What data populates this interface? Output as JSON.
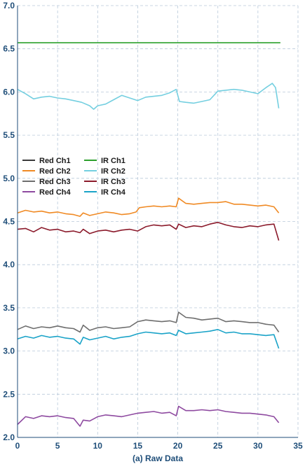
{
  "chart_data": {
    "type": "line",
    "caption": "(a) Raw Data",
    "xlim": [
      0,
      35
    ],
    "ylim": [
      2.0,
      7.0
    ],
    "x_ticks": [
      0,
      5,
      10,
      15,
      20,
      25,
      30,
      35
    ],
    "y_ticks": [
      2.0,
      2.5,
      3.0,
      3.5,
      4.0,
      4.5,
      5.0,
      5.5,
      6.0,
      6.5,
      7.0
    ],
    "y_tick_labels": [
      "2.0",
      "2.5",
      "3.0",
      "3.5",
      "4.0",
      "4.5",
      "5.0",
      "5.5",
      "6.0",
      "6.5",
      "7.0"
    ],
    "grid": true,
    "legend_placement": "middle-left",
    "legend": [
      {
        "name": "Red Ch1",
        "color": "#3a3a3a"
      },
      {
        "name": "IR Ch1",
        "color": "#2ca02c"
      },
      {
        "name": "Red Ch2",
        "color": "#f08a24"
      },
      {
        "name": "IR Ch2",
        "color": "#74cfe0"
      },
      {
        "name": "Red Ch3",
        "color": "#6e6e6e"
      },
      {
        "name": "IR Ch3",
        "color": "#8b1a2b"
      },
      {
        "name": "Red Ch4",
        "color": "#8e4aa0"
      },
      {
        "name": "IR Ch4",
        "color": "#1aa3c8"
      }
    ],
    "series": [
      {
        "name": "IR Ch1",
        "color": "#2ca02c",
        "x": [
          0,
          32.8
        ],
        "y": [
          6.57,
          6.57
        ]
      },
      {
        "name": "IR Ch2",
        "color": "#74cfe0",
        "x": [
          0,
          1,
          2,
          3,
          4,
          5,
          6,
          7,
          8,
          9,
          9.5,
          10,
          11,
          12,
          13,
          14,
          15,
          16,
          17,
          18,
          19,
          19.8,
          20.2,
          21,
          22,
          23,
          24,
          25,
          26,
          27,
          28,
          29,
          30,
          31,
          31.8,
          32.2,
          32.6
        ],
        "y": [
          6.03,
          5.98,
          5.92,
          5.94,
          5.95,
          5.93,
          5.92,
          5.9,
          5.88,
          5.84,
          5.8,
          5.84,
          5.86,
          5.91,
          5.96,
          5.93,
          5.9,
          5.94,
          5.95,
          5.96,
          5.99,
          6.03,
          5.89,
          5.88,
          5.87,
          5.89,
          5.91,
          6.01,
          6.02,
          6.03,
          6.02,
          6.0,
          5.98,
          6.05,
          6.1,
          6.05,
          5.81
        ]
      },
      {
        "name": "Red Ch2",
        "color": "#f08a24",
        "x": [
          0,
          1,
          2,
          3,
          4,
          5,
          6,
          7,
          7.8,
          8.2,
          9,
          10,
          11,
          12,
          13,
          14,
          14.8,
          15.2,
          16,
          17,
          18,
          19,
          19.8,
          20.1,
          21,
          22,
          23,
          24,
          25,
          26,
          27,
          28,
          29,
          30,
          31,
          32,
          32.6
        ],
        "y": [
          4.6,
          4.63,
          4.61,
          4.62,
          4.6,
          4.61,
          4.59,
          4.58,
          4.56,
          4.6,
          4.57,
          4.59,
          4.61,
          4.6,
          4.58,
          4.59,
          4.61,
          4.66,
          4.67,
          4.68,
          4.67,
          4.68,
          4.67,
          4.77,
          4.71,
          4.7,
          4.71,
          4.72,
          4.72,
          4.73,
          4.7,
          4.7,
          4.69,
          4.68,
          4.69,
          4.67,
          4.6
        ]
      },
      {
        "name": "IR Ch3",
        "color": "#8b1a2b",
        "x": [
          0,
          1,
          2,
          3,
          4,
          5,
          6,
          7,
          7.8,
          8.2,
          9,
          10,
          11,
          12,
          13,
          14,
          15,
          16,
          17,
          18,
          19,
          19.8,
          20.1,
          21,
          22,
          23,
          24,
          25,
          26,
          27,
          28,
          29,
          30,
          31,
          32,
          32.6
        ],
        "y": [
          4.41,
          4.42,
          4.38,
          4.43,
          4.4,
          4.41,
          4.38,
          4.39,
          4.37,
          4.41,
          4.36,
          4.39,
          4.4,
          4.38,
          4.4,
          4.41,
          4.39,
          4.44,
          4.46,
          4.45,
          4.46,
          4.41,
          4.47,
          4.43,
          4.45,
          4.44,
          4.47,
          4.49,
          4.46,
          4.44,
          4.43,
          4.45,
          4.44,
          4.46,
          4.47,
          4.28
        ]
      },
      {
        "name": "Red Ch3",
        "color": "#6e6e6e",
        "x": [
          0,
          1,
          2,
          3,
          4,
          5,
          6,
          7,
          7.8,
          8.2,
          9,
          10,
          11,
          12,
          13,
          14,
          15,
          16,
          17,
          18,
          19,
          19.8,
          20.1,
          21,
          22,
          23,
          24,
          25,
          26,
          27,
          28,
          29,
          30,
          31,
          32,
          32.6
        ],
        "y": [
          3.25,
          3.29,
          3.26,
          3.28,
          3.27,
          3.29,
          3.27,
          3.26,
          3.22,
          3.3,
          3.24,
          3.27,
          3.28,
          3.26,
          3.27,
          3.28,
          3.34,
          3.36,
          3.35,
          3.34,
          3.35,
          3.33,
          3.45,
          3.39,
          3.38,
          3.36,
          3.37,
          3.38,
          3.34,
          3.35,
          3.34,
          3.33,
          3.33,
          3.31,
          3.3,
          3.22
        ]
      },
      {
        "name": "IR Ch4",
        "color": "#1aa3c8",
        "x": [
          0,
          1,
          2,
          3,
          4,
          5,
          6,
          7,
          7.8,
          8.2,
          9,
          10,
          11,
          12,
          13,
          14,
          15,
          16,
          17,
          18,
          19,
          19.8,
          20.1,
          21,
          22,
          23,
          24,
          25,
          26,
          27,
          28,
          29,
          30,
          31,
          32,
          32.6
        ],
        "y": [
          3.14,
          3.17,
          3.15,
          3.18,
          3.16,
          3.17,
          3.15,
          3.14,
          3.08,
          3.16,
          3.13,
          3.15,
          3.17,
          3.14,
          3.16,
          3.17,
          3.2,
          3.22,
          3.21,
          3.2,
          3.21,
          3.18,
          3.24,
          3.2,
          3.21,
          3.22,
          3.23,
          3.25,
          3.21,
          3.22,
          3.2,
          3.2,
          3.19,
          3.18,
          3.19,
          3.03
        ]
      },
      {
        "name": "Red Ch4",
        "color": "#8e4aa0",
        "x": [
          0,
          1,
          2,
          3,
          4,
          5,
          6,
          7,
          7.8,
          8.2,
          9,
          10,
          11,
          12,
          13,
          14,
          15,
          16,
          17,
          18,
          19,
          19.8,
          20.1,
          21,
          22,
          23,
          24,
          25,
          26,
          27,
          28,
          29,
          30,
          31,
          32,
          32.6
        ],
        "y": [
          2.15,
          2.24,
          2.22,
          2.25,
          2.24,
          2.25,
          2.23,
          2.22,
          2.13,
          2.2,
          2.19,
          2.24,
          2.26,
          2.25,
          2.24,
          2.26,
          2.28,
          2.29,
          2.3,
          2.28,
          2.29,
          2.25,
          2.36,
          2.31,
          2.31,
          2.32,
          2.31,
          2.32,
          2.3,
          2.29,
          2.28,
          2.28,
          2.27,
          2.26,
          2.24,
          2.17
        ]
      }
    ]
  }
}
